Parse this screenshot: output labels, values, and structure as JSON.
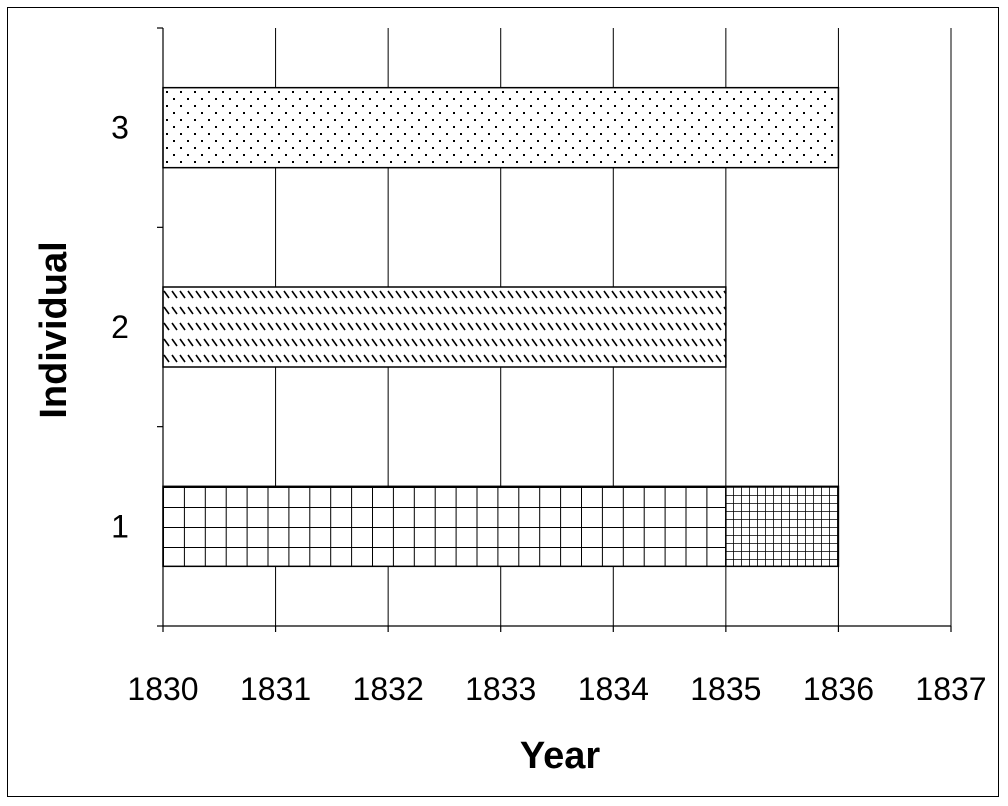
{
  "chart_data": {
    "type": "bar",
    "orientation": "horizontal",
    "xlabel": "Year",
    "ylabel": "Individual",
    "xlim": [
      1830,
      1837
    ],
    "x_ticks": [
      1830,
      1831,
      1832,
      1833,
      1834,
      1835,
      1836,
      1837
    ],
    "categories": [
      "1",
      "2",
      "3"
    ],
    "grid": "vertical",
    "bars": [
      {
        "category": "1",
        "start": 1830,
        "end": 1835,
        "pattern": "large-grid"
      },
      {
        "category": "1",
        "start": 1835,
        "end": 1836,
        "pattern": "small-grid"
      },
      {
        "category": "2",
        "start": 1830,
        "end": 1835,
        "pattern": "diagonal-dashes"
      },
      {
        "category": "3",
        "start": 1830,
        "end": 1836,
        "pattern": "dots"
      }
    ]
  }
}
